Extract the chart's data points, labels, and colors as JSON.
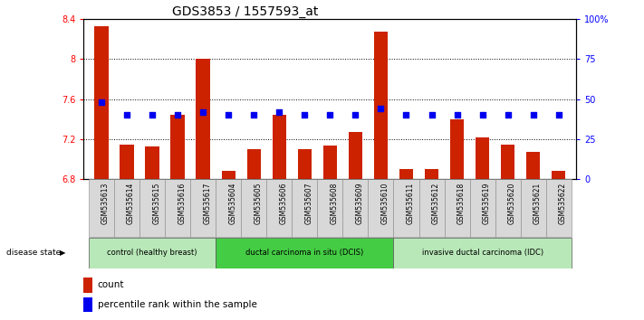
{
  "title": "GDS3853 / 1557593_at",
  "samples": [
    "GSM535613",
    "GSM535614",
    "GSM535615",
    "GSM535616",
    "GSM535617",
    "GSM535604",
    "GSM535605",
    "GSM535606",
    "GSM535607",
    "GSM535608",
    "GSM535609",
    "GSM535610",
    "GSM535611",
    "GSM535612",
    "GSM535618",
    "GSM535619",
    "GSM535620",
    "GSM535621",
    "GSM535622"
  ],
  "counts": [
    8.33,
    7.15,
    7.13,
    7.44,
    8.0,
    6.88,
    7.1,
    7.44,
    7.1,
    7.14,
    7.27,
    8.28,
    6.9,
    6.9,
    7.4,
    7.22,
    7.15,
    7.07,
    6.88
  ],
  "percentile_ranks": [
    48,
    40,
    40,
    40,
    42,
    40,
    40,
    42,
    40,
    40,
    40,
    44,
    40,
    40,
    40,
    40,
    40,
    40,
    40
  ],
  "ylim_left": [
    6.8,
    8.4
  ],
  "ylim_right": [
    0,
    100
  ],
  "yticks_left": [
    6.8,
    7.2,
    7.6,
    8.0,
    8.4
  ],
  "yticks_right": [
    0,
    25,
    50,
    75,
    100
  ],
  "ytick_labels_left": [
    "6.8",
    "7.2",
    "7.6",
    "8",
    "8.4"
  ],
  "ytick_labels_right": [
    "0",
    "25",
    "50",
    "75",
    "100%"
  ],
  "groups": [
    {
      "label": "control (healthy breast)",
      "start": 0,
      "end": 4
    },
    {
      "label": "ductal carcinoma in situ (DCIS)",
      "start": 5,
      "end": 11
    },
    {
      "label": "invasive ductal carcinoma (IDC)",
      "start": 12,
      "end": 18
    }
  ],
  "group_colors": [
    "#b8e8b8",
    "#44cc44",
    "#b8e8b8"
  ],
  "bar_color": "#CC2200",
  "dot_color": "#0000EE",
  "bar_baseline": 6.8,
  "background_color": "#ffffff",
  "grid_color": "#000000",
  "title_fontsize": 10,
  "tick_fontsize": 7,
  "label_fontsize": 7,
  "legend_items": [
    "count",
    "percentile rank within the sample"
  ],
  "disease_state_label": "disease state"
}
